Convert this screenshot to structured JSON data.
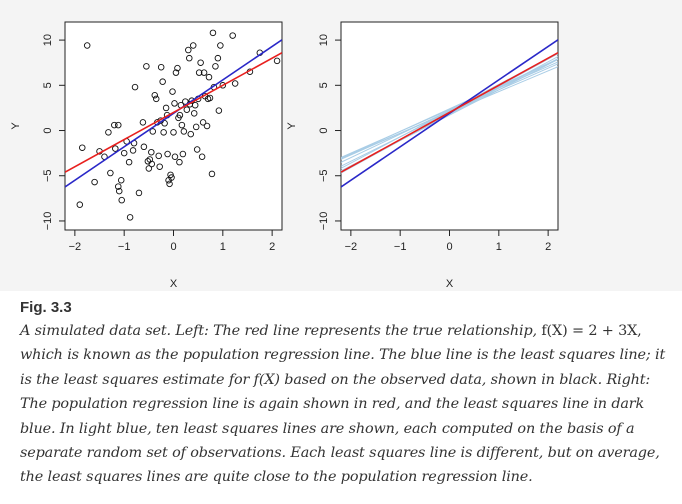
{
  "chart_data": [
    {
      "type": "scatter",
      "panel": "left",
      "xlabel": "X",
      "ylabel": "Y",
      "xlim": [
        -2.2,
        2.2
      ],
      "ylim": [
        -11,
        12
      ],
      "xticks": [
        -2,
        -1,
        0,
        1,
        2
      ],
      "yticks": [
        -10,
        -5,
        0,
        5,
        10
      ],
      "points": [
        [
          -1.75,
          9.4
        ],
        [
          -1.9,
          -8.2
        ],
        [
          -1.85,
          -1.9
        ],
        [
          -1.6,
          -5.7
        ],
        [
          -1.5,
          -2.3
        ],
        [
          -1.4,
          -2.9
        ],
        [
          -1.32,
          -0.2
        ],
        [
          -1.28,
          -4.7
        ],
        [
          -1.2,
          0.6
        ],
        [
          -1.18,
          -2.0
        ],
        [
          -1.12,
          0.6
        ],
        [
          -1.12,
          -6.2
        ],
        [
          -1.1,
          -6.7
        ],
        [
          -1.06,
          -5.5
        ],
        [
          -1.05,
          -7.7
        ],
        [
          -1.0,
          -2.5
        ],
        [
          -0.95,
          -1.2
        ],
        [
          -0.9,
          -3.5
        ],
        [
          -0.88,
          -9.6
        ],
        [
          -0.82,
          -2.2
        ],
        [
          -0.8,
          -1.4
        ],
        [
          -0.78,
          4.8
        ],
        [
          -0.7,
          -6.9
        ],
        [
          -0.62,
          0.9
        ],
        [
          -0.6,
          -1.8
        ],
        [
          -0.55,
          7.1
        ],
        [
          -0.52,
          -3.4
        ],
        [
          -0.5,
          -4.2
        ],
        [
          -0.48,
          -3.2
        ],
        [
          -0.45,
          -2.4
        ],
        [
          -0.44,
          -3.7
        ],
        [
          -0.42,
          -0.1
        ],
        [
          -0.38,
          3.9
        ],
        [
          -0.35,
          3.5
        ],
        [
          -0.33,
          0.9
        ],
        [
          -0.3,
          -2.8
        ],
        [
          -0.28,
          -4.0
        ],
        [
          -0.26,
          1.1
        ],
        [
          -0.25,
          7.0
        ],
        [
          -0.22,
          5.4
        ],
        [
          -0.2,
          -0.2
        ],
        [
          -0.18,
          0.8
        ],
        [
          -0.15,
          2.5
        ],
        [
          -0.13,
          1.7
        ],
        [
          -0.12,
          -2.6
        ],
        [
          -0.1,
          -5.5
        ],
        [
          -0.08,
          -5.9
        ],
        [
          -0.06,
          -4.9
        ],
        [
          -0.04,
          -5.2
        ],
        [
          -0.02,
          4.3
        ],
        [
          0.0,
          -0.2
        ],
        [
          0.02,
          3.0
        ],
        [
          0.03,
          -2.9
        ],
        [
          0.05,
          6.4
        ],
        [
          0.08,
          6.9
        ],
        [
          0.1,
          1.4
        ],
        [
          0.12,
          -3.5
        ],
        [
          0.13,
          1.7
        ],
        [
          0.15,
          2.8
        ],
        [
          0.17,
          0.6
        ],
        [
          0.19,
          -2.6
        ],
        [
          0.21,
          -0.1
        ],
        [
          0.24,
          3.2
        ],
        [
          0.27,
          2.3
        ],
        [
          0.3,
          8.9
        ],
        [
          0.32,
          8.0
        ],
        [
          0.33,
          2.9
        ],
        [
          0.35,
          -0.4
        ],
        [
          0.37,
          3.3
        ],
        [
          0.4,
          9.4
        ],
        [
          0.42,
          1.9
        ],
        [
          0.44,
          2.8
        ],
        [
          0.46,
          0.4
        ],
        [
          0.48,
          -2.1
        ],
        [
          0.5,
          3.5
        ],
        [
          0.52,
          6.4
        ],
        [
          0.55,
          7.5
        ],
        [
          0.58,
          -2.9
        ],
        [
          0.6,
          0.9
        ],
        [
          0.62,
          6.4
        ],
        [
          0.64,
          3.8
        ],
        [
          0.68,
          0.5
        ],
        [
          0.7,
          3.5
        ],
        [
          0.72,
          5.9
        ],
        [
          0.74,
          3.6
        ],
        [
          0.78,
          -4.8
        ],
        [
          0.8,
          10.8
        ],
        [
          0.82,
          4.8
        ],
        [
          0.85,
          7.1
        ],
        [
          0.9,
          8.0
        ],
        [
          0.92,
          2.2
        ],
        [
          0.95,
          9.4
        ],
        [
          1.0,
          5.0
        ],
        [
          1.2,
          10.5
        ],
        [
          1.25,
          5.2
        ],
        [
          1.55,
          6.5
        ],
        [
          1.75,
          8.6
        ],
        [
          2.1,
          7.7
        ]
      ],
      "true_line": {
        "intercept": 2,
        "slope": 3,
        "color": "#e8201e"
      },
      "fit_line": {
        "intercept": 1.9,
        "slope": 3.7,
        "color": "#2a28c8"
      }
    },
    {
      "type": "line",
      "panel": "right",
      "xlabel": "X",
      "ylabel": "Y",
      "xlim": [
        -2.2,
        2.2
      ],
      "ylim": [
        -11,
        12
      ],
      "xticks": [
        -2,
        -1,
        0,
        1,
        2
      ],
      "yticks": [
        -10,
        -5,
        0,
        5,
        10
      ],
      "sample_lines": [
        {
          "intercept": 2.0,
          "slope": 2.7
        },
        {
          "intercept": 2.3,
          "slope": 2.4
        },
        {
          "intercept": 1.8,
          "slope": 2.9
        },
        {
          "intercept": 2.2,
          "slope": 2.6
        },
        {
          "intercept": 2.1,
          "slope": 2.4
        },
        {
          "intercept": 1.9,
          "slope": 3.0
        },
        {
          "intercept": 2.4,
          "slope": 2.5
        },
        {
          "intercept": 1.7,
          "slope": 2.8
        },
        {
          "intercept": 2.0,
          "slope": 2.3
        },
        {
          "intercept": 2.2,
          "slope": 2.9
        }
      ],
      "sample_line_color": "#a9cde6",
      "true_line": {
        "intercept": 2,
        "slope": 3,
        "color": "#e8201e"
      },
      "fit_line": {
        "intercept": 1.9,
        "slope": 3.7,
        "color": "#2a28c8"
      }
    }
  ],
  "caption": {
    "label": "Fig. 3.3",
    "part1": "A simulated data set. Left: ",
    "part2": "The red line represents the true relationship, ",
    "formula": "f(X) = 2 + 3X,",
    "part3": " which is known as the population regression line. The blue line is the least squares line; it is the least squares estimate for f(X) based on the observed data, shown in black. Right: The population regression line is again shown in red, and the least squares line in dark blue. In light blue, ten least squares lines are shown, each computed on the basis of a separate random set of observations. Each least squares line is different, but on average, the least squares lines are quite close to the population regression line."
  }
}
